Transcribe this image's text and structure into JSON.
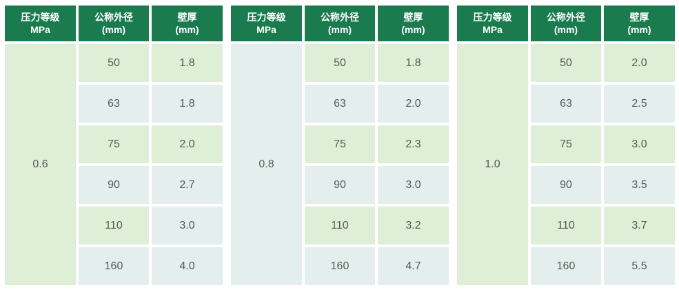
{
  "colors": {
    "header": "#1a7b4e",
    "green": "#dfeed6",
    "blue": "#e4efed",
    "header_text": "#ffffff",
    "cell_text": "#545a54"
  },
  "headers": {
    "pressure": {
      "line1": "压力等级",
      "line2": "MPa"
    },
    "diameter": {
      "line1": "公称外径",
      "line2": "(mm)"
    },
    "thickness": {
      "line1": "壁厚",
      "line2": "(mm)"
    }
  },
  "tables": [
    {
      "pressure": "0.6",
      "pressure_bg": "green",
      "rows": [
        {
          "diameter": "50",
          "thickness": "1.8",
          "diameter_bg": "green",
          "thickness_bg": "green"
        },
        {
          "diameter": "63",
          "thickness": "1.8",
          "diameter_bg": "blue",
          "thickness_bg": "blue"
        },
        {
          "diameter": "75",
          "thickness": "2.0",
          "diameter_bg": "green",
          "thickness_bg": "green"
        },
        {
          "diameter": "90",
          "thickness": "2.7",
          "diameter_bg": "blue",
          "thickness_bg": "blue"
        },
        {
          "diameter": "110",
          "thickness": "3.0",
          "diameter_bg": "green",
          "thickness_bg": "blue"
        },
        {
          "diameter": "160",
          "thickness": "4.0",
          "diameter_bg": "blue",
          "thickness_bg": "blue"
        }
      ]
    },
    {
      "pressure": "0.8",
      "pressure_bg": "blue",
      "rows": [
        {
          "diameter": "50",
          "thickness": "1.8",
          "diameter_bg": "green",
          "thickness_bg": "green"
        },
        {
          "diameter": "63",
          "thickness": "2.0",
          "diameter_bg": "blue",
          "thickness_bg": "blue"
        },
        {
          "diameter": "75",
          "thickness": "2.3",
          "diameter_bg": "green",
          "thickness_bg": "green"
        },
        {
          "diameter": "90",
          "thickness": "3.0",
          "diameter_bg": "blue",
          "thickness_bg": "blue"
        },
        {
          "diameter": "110",
          "thickness": "3.2",
          "diameter_bg": "green",
          "thickness_bg": "green"
        },
        {
          "diameter": "160",
          "thickness": "4.7",
          "diameter_bg": "blue",
          "thickness_bg": "blue"
        }
      ]
    },
    {
      "pressure": "1.0",
      "pressure_bg": "green",
      "rows": [
        {
          "diameter": "50",
          "thickness": "2.0",
          "diameter_bg": "green",
          "thickness_bg": "green"
        },
        {
          "diameter": "63",
          "thickness": "2.5",
          "diameter_bg": "blue",
          "thickness_bg": "blue"
        },
        {
          "diameter": "75",
          "thickness": "3.0",
          "diameter_bg": "green",
          "thickness_bg": "green"
        },
        {
          "diameter": "90",
          "thickness": "3.5",
          "diameter_bg": "blue",
          "thickness_bg": "blue"
        },
        {
          "diameter": "110",
          "thickness": "3.7",
          "diameter_bg": "green",
          "thickness_bg": "green"
        },
        {
          "diameter": "160",
          "thickness": "5.5",
          "diameter_bg": "blue",
          "thickness_bg": "blue"
        }
      ]
    }
  ]
}
